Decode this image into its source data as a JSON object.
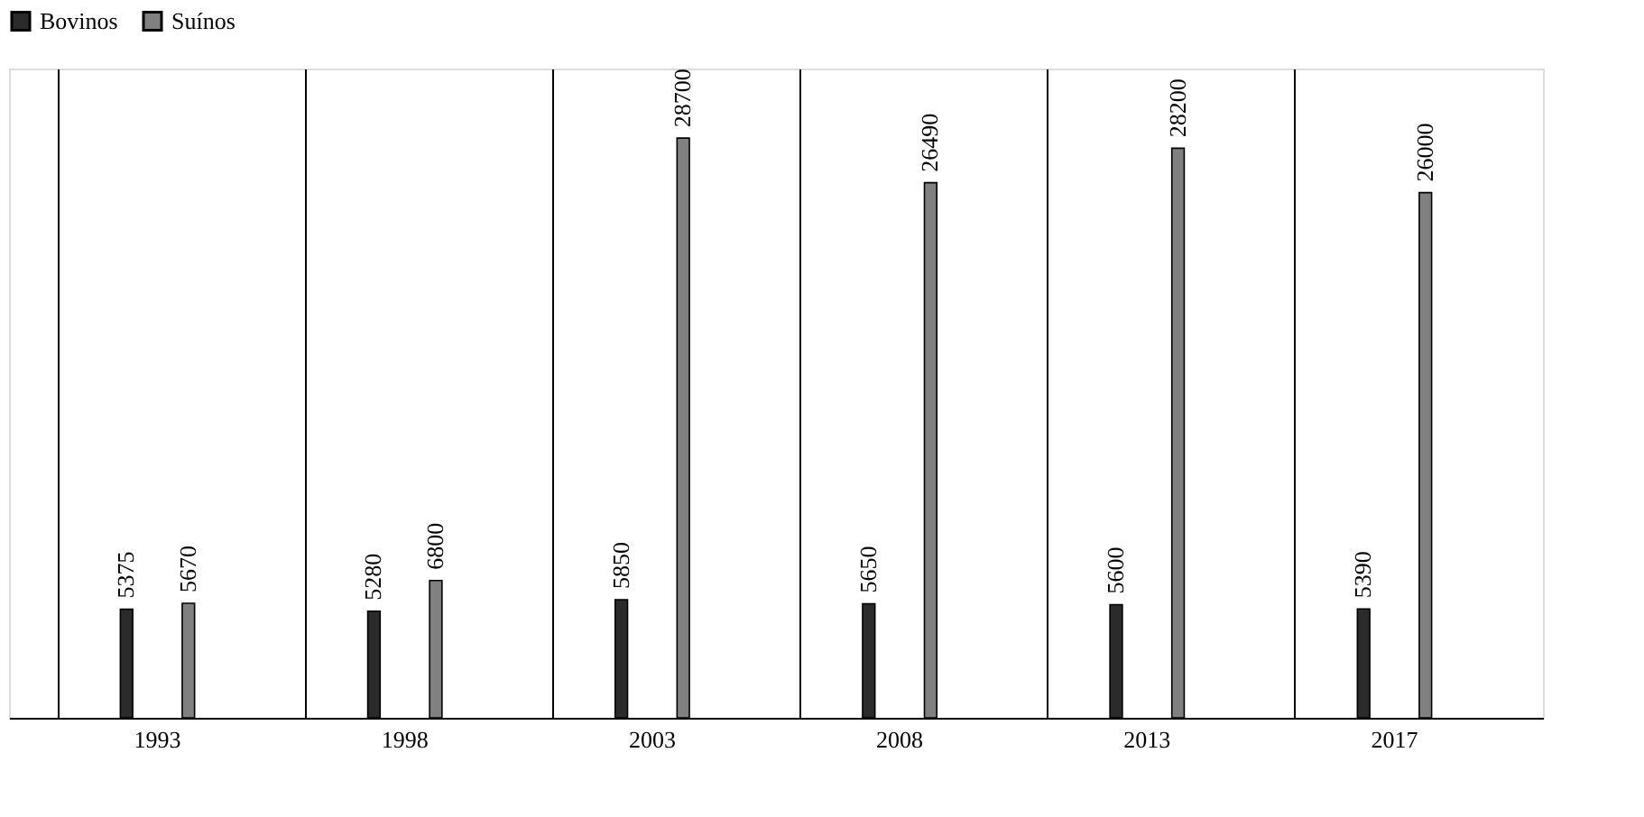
{
  "chart_data": {
    "type": "bar",
    "categories": [
      "1993",
      "1998",
      "2003",
      "2008",
      "2013",
      "2017"
    ],
    "series": [
      {
        "name": "Bovinos",
        "color": "#2b2b2b",
        "values": [
          5375,
          5280,
          5850,
          5650,
          5600,
          5390
        ]
      },
      {
        "name": "Suínos",
        "color": "#808080",
        "values": [
          5670,
          6800,
          28700,
          26490,
          28200,
          26000
        ]
      }
    ],
    "data_labels": true,
    "legend": "top",
    "grid": "x"
  }
}
